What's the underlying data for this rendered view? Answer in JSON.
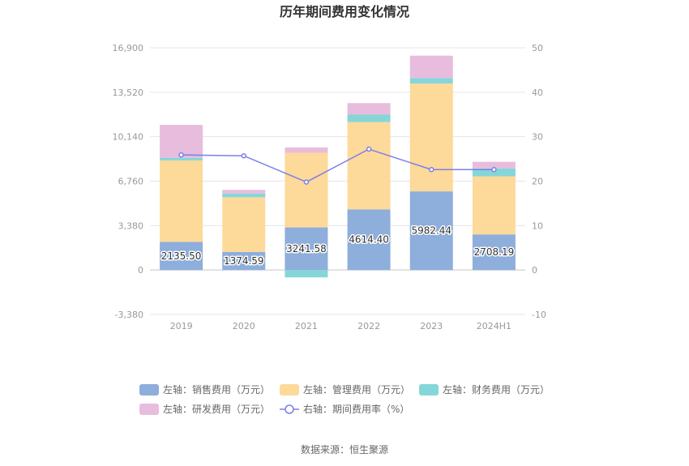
{
  "chart_data": {
    "type": "bar",
    "title": "历年期间费用变化情况",
    "categories": [
      "2019",
      "2020",
      "2021",
      "2022",
      "2023",
      "2024H1"
    ],
    "y_left": {
      "ticks": [
        -3380,
        0,
        3380,
        6760,
        10140,
        13520,
        16900
      ],
      "tick_labels": [
        "-3,380",
        "0",
        "3,380",
        "6,760",
        "10,140",
        "13,520",
        "16,900"
      ],
      "ylim": [
        -3380,
        16900
      ]
    },
    "y_right": {
      "ticks": [
        -10,
        0,
        10,
        20,
        30,
        40,
        50
      ],
      "tick_labels": [
        "-10",
        "0",
        "10",
        "20",
        "30",
        "40",
        "50"
      ],
      "ylim": [
        -10,
        50
      ]
    },
    "series": [
      {
        "name": "左轴：销售费用（万元）",
        "axis": "left",
        "kind": "bar",
        "color": "#8eaedc",
        "values": [
          2135.5,
          1374.59,
          3241.58,
          4614.4,
          5982.44,
          2708.19
        ],
        "labels": [
          "2135.50",
          "1374.59",
          "3241.58",
          "4614.40",
          "5982.44",
          "2708.19"
        ]
      },
      {
        "name": "左轴：管理费用（万元）",
        "axis": "left",
        "kind": "bar",
        "color": "#fdd99a",
        "values": [
          6200,
          4160,
          5680,
          6640,
          8200,
          4420
        ]
      },
      {
        "name": "左轴：财务费用（万元）",
        "axis": "left",
        "kind": "bar",
        "color": "#85d6d8",
        "values": [
          200,
          280,
          -560,
          560,
          420,
          600
        ]
      },
      {
        "name": "左轴：研发费用（万元）",
        "axis": "left",
        "kind": "bar",
        "color": "#e7bcdc",
        "values": [
          2500,
          280,
          400,
          880,
          1700,
          500
        ]
      },
      {
        "name": "右轴：期间费用率（%）",
        "axis": "right",
        "kind": "line",
        "color": "#7b7fe8",
        "values": [
          25.9,
          25.7,
          19.8,
          27.2,
          22.6,
          22.6
        ]
      }
    ],
    "grid": true,
    "legend_position": "bottom"
  },
  "source": "数据来源：恒生聚源"
}
